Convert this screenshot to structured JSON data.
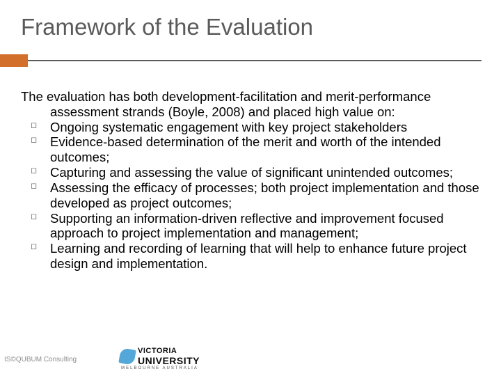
{
  "title": "Framework of the Evaluation",
  "colors": {
    "accent": "#d16f2b",
    "title": "#5a5a5a",
    "rule": "#5a5a5a",
    "body": "#000000",
    "background": "#ffffff",
    "footer_text": "#8d8d8d",
    "logo_blue": "#4aa3d8"
  },
  "fontsizes": {
    "title": 33,
    "body": 18.5,
    "footer": 10
  },
  "intro": "The evaluation has both development-facilitation and merit-performance assessment strands (Boyle, 2008)  and placed high value on:",
  "bullets": [
    "Ongoing systematic engagement with key project stakeholders",
    "Evidence-based determination of the merit and worth of the intended outcomes;",
    "Capturing and assessing the value of significant unintended outcomes;",
    "Assessing the efficacy of processes; both project implementation and those developed as project outcomes;",
    "Supporting an information-driven reflective and improvement focused approach to project implementation and management;",
    "Learning and recording of learning that will help to enhance future project design and implementation."
  ],
  "footer": {
    "left": "IS©QUBUM Consulting"
  },
  "logo": {
    "line1": "VICTORIA",
    "line2": "UNIVERSITY",
    "sub": "MELBOURNE AUSTRALIA"
  }
}
